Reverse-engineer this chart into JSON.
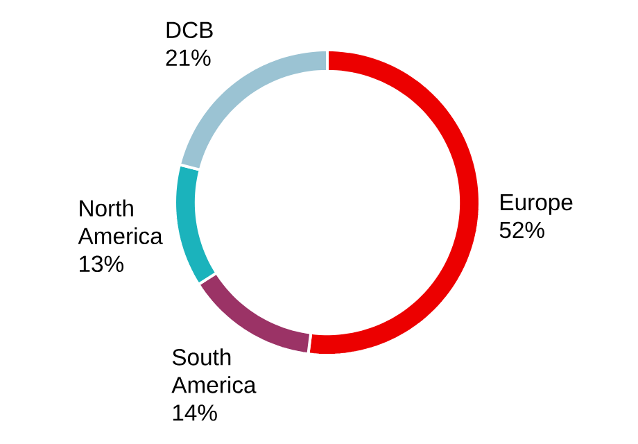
{
  "chart_data": {
    "type": "donut",
    "categories": [
      "Europe",
      "South America",
      "North America",
      "DCB"
    ],
    "values": [
      52,
      14,
      13,
      21
    ],
    "value_labels": [
      "52%",
      "14%",
      "13%",
      "21%"
    ],
    "colors": [
      "#ec0000",
      "#9b3366",
      "#1bb3bc",
      "#9bc3d3"
    ]
  }
}
